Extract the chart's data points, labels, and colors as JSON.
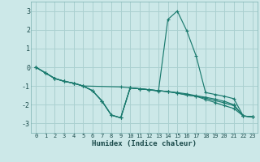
{
  "xlabel": "Humidex (Indice chaleur)",
  "bg_color": "#cce8e8",
  "grid_color": "#aad0d0",
  "line_color": "#1a7a6e",
  "xlim": [
    -0.5,
    23.5
  ],
  "ylim": [
    -3.5,
    3.5
  ],
  "yticks": [
    -3,
    -2,
    -1,
    0,
    1,
    2,
    3
  ],
  "xticks": [
    0,
    1,
    2,
    3,
    4,
    5,
    6,
    7,
    8,
    9,
    10,
    11,
    12,
    13,
    14,
    15,
    16,
    17,
    18,
    19,
    20,
    21,
    22,
    23
  ],
  "lines": [
    {
      "x": [
        0,
        1,
        2,
        3,
        4,
        5,
        6,
        7,
        8,
        9,
        10,
        11,
        12,
        13,
        14,
        15,
        16,
        17,
        18,
        19,
        20,
        21,
        22,
        23
      ],
      "y": [
        0.0,
        -0.3,
        -0.6,
        -0.75,
        -0.85,
        -1.0,
        -1.25,
        -1.8,
        -2.55,
        -2.7,
        -1.1,
        -1.15,
        -1.2,
        -1.25,
        -1.3,
        -1.38,
        -1.48,
        -1.55,
        -1.65,
        -1.78,
        -1.9,
        -2.05,
        -2.6,
        -2.65
      ]
    },
    {
      "x": [
        0,
        1,
        2,
        3,
        4,
        5,
        6,
        7,
        8,
        9,
        10,
        11,
        12,
        13,
        14,
        15,
        16,
        17,
        18,
        19,
        20,
        21,
        22,
        23
      ],
      "y": [
        0.0,
        -0.3,
        -0.6,
        -0.75,
        -0.85,
        -1.0,
        -1.25,
        -1.8,
        -2.55,
        -2.7,
        -1.1,
        -1.15,
        -1.2,
        -1.28,
        2.55,
        3.0,
        1.95,
        0.6,
        -1.35,
        -1.45,
        -1.55,
        -1.68,
        -2.6,
        -2.65
      ]
    },
    {
      "x": [
        0,
        1,
        2,
        3,
        4,
        5,
        9,
        10,
        11,
        12,
        13,
        14,
        15,
        16,
        17,
        18,
        19,
        20,
        21,
        22,
        23
      ],
      "y": [
        0.0,
        -0.3,
        -0.6,
        -0.75,
        -0.85,
        -1.0,
        -1.05,
        -1.1,
        -1.15,
        -1.2,
        -1.25,
        -1.3,
        -1.35,
        -1.42,
        -1.52,
        -1.6,
        -1.7,
        -1.82,
        -2.0,
        -2.6,
        -2.65
      ]
    },
    {
      "x": [
        0,
        1,
        2,
        3,
        4,
        5,
        6,
        7,
        8,
        9,
        10,
        11,
        12,
        13,
        14,
        15,
        16,
        17,
        18,
        19,
        20,
        21,
        22,
        23
      ],
      "y": [
        0.0,
        -0.3,
        -0.6,
        -0.75,
        -0.85,
        -1.0,
        -1.25,
        -1.8,
        -2.55,
        -2.7,
        -1.1,
        -1.15,
        -1.2,
        -1.25,
        -1.3,
        -1.38,
        -1.48,
        -1.55,
        -1.72,
        -1.88,
        -2.05,
        -2.2,
        -2.6,
        -2.65
      ]
    }
  ]
}
